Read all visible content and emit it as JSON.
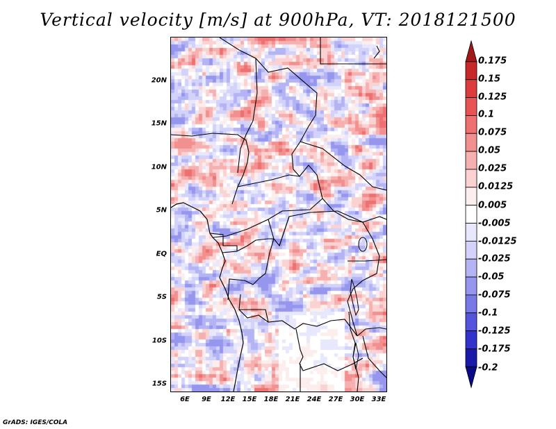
{
  "title": "Vertical velocity [m/s] at 900hPa, VT: 2018121500",
  "footer": "GrADS: IGES/COLA",
  "map": {
    "lat_labels": [
      "20N",
      "15N",
      "10N",
      "5N",
      "EQ",
      "5S",
      "10S",
      "15S"
    ],
    "lon_labels": [
      "6E",
      "9E",
      "12E",
      "15E",
      "18E",
      "21E",
      "24E",
      "27E",
      "30E",
      "33E"
    ],
    "lon_range": [
      4,
      34
    ],
    "lat_range": [
      -16,
      25
    ],
    "positive_color": "#e05050",
    "negative_color": "#6060e0"
  },
  "colorbar": {
    "levels": [
      "0.175",
      "0.15",
      "0.125",
      "0.1",
      "0.075",
      "0.05",
      "0.025",
      "0.0125",
      "0.005",
      "-0.005",
      "-0.0125",
      "-0.025",
      "-0.05",
      "-0.075",
      "-0.1",
      "-0.125",
      "-0.175",
      "-0.2"
    ],
    "colors": [
      "#a01818",
      "#c82828",
      "#dc3c3c",
      "#e85454",
      "#ee7070",
      "#f29090",
      "#f6b0b0",
      "#fad2d2",
      "#fdeeee",
      "#ffffff",
      "#e8e8fc",
      "#d2d2fa",
      "#b4b4f4",
      "#9696ee",
      "#7878e6",
      "#5454dc",
      "#3232cc",
      "#1a1aa8",
      "#0a0a88"
    ]
  }
}
